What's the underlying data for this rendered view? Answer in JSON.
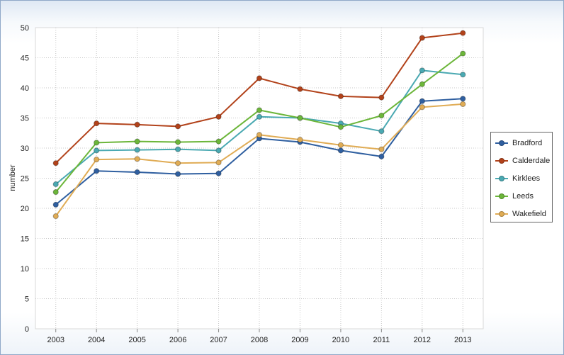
{
  "chart_data": {
    "type": "line",
    "title": "",
    "xlabel": "",
    "ylabel": "number",
    "x": [
      "2003",
      "2004",
      "2005",
      "2006",
      "2007",
      "2008",
      "2009",
      "2010",
      "2011",
      "2012",
      "2013"
    ],
    "ylim": [
      0,
      50
    ],
    "yticks": [
      0,
      5,
      10,
      15,
      20,
      25,
      30,
      35,
      40,
      45,
      50
    ],
    "grid": true,
    "legend_position": "right",
    "series": [
      {
        "name": "Bradford",
        "color": "#2f5fa0",
        "values": [
          20.6,
          26.2,
          26.0,
          25.7,
          25.8,
          31.6,
          31.0,
          29.6,
          28.6,
          37.8,
          38.2
        ]
      },
      {
        "name": "Calderdale",
        "color": "#b2421a",
        "values": [
          27.5,
          34.1,
          33.9,
          33.6,
          35.2,
          41.6,
          39.8,
          38.6,
          38.4,
          48.3,
          49.1
        ]
      },
      {
        "name": "Kirklees",
        "color": "#4aa9b2",
        "values": [
          24.0,
          29.6,
          29.7,
          29.8,
          29.6,
          35.2,
          35.0,
          34.1,
          32.8,
          42.9,
          42.2
        ]
      },
      {
        "name": "Leeds",
        "color": "#6cb63a",
        "values": [
          22.7,
          30.9,
          31.1,
          31.0,
          31.1,
          36.3,
          35.0,
          33.5,
          35.4,
          40.6,
          45.7
        ]
      },
      {
        "name": "Wakefield",
        "color": "#e0ac55",
        "values": [
          18.7,
          28.1,
          28.2,
          27.5,
          27.6,
          32.2,
          31.4,
          30.5,
          29.8,
          36.8,
          37.3
        ]
      }
    ]
  }
}
